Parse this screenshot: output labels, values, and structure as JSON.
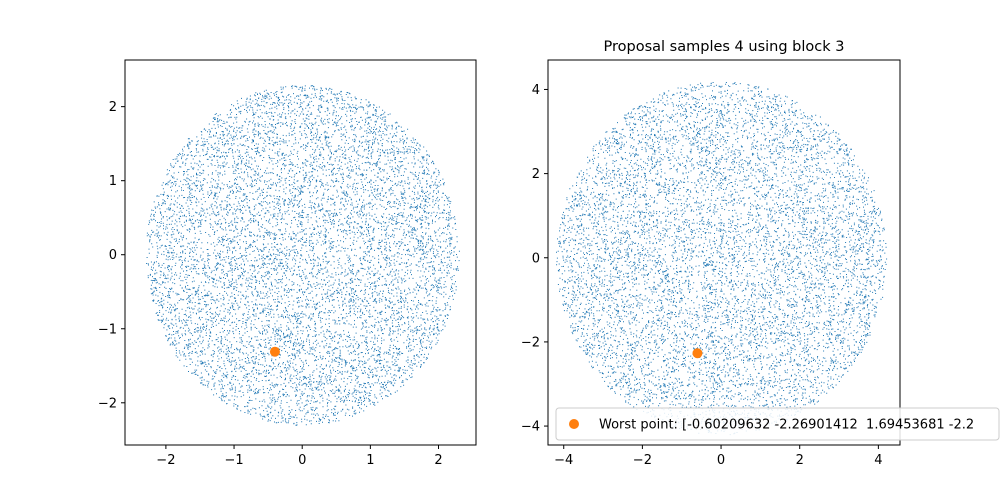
{
  "chart_data": [
    {
      "type": "scatter",
      "title": "",
      "xlabel": "",
      "ylabel": "",
      "xlim": [
        -2.6,
        2.55
      ],
      "ylim": [
        -2.57,
        2.63
      ],
      "xticks": [
        -2,
        -1,
        0,
        1,
        2
      ],
      "yticks": [
        -2,
        -1,
        0,
        1,
        2
      ],
      "grid": false,
      "sample_cloud": {
        "distribution": "approximately uniform within a disk",
        "center": [
          0,
          0
        ],
        "radius": 2.3,
        "marker": "pixel",
        "color": "#1f77b4"
      },
      "series": [
        {
          "x": [
            -0.4
          ],
          "y": [
            -1.31
          ],
          "color": "#ff7f0e",
          "marker": "o"
        }
      ]
    },
    {
      "type": "scatter",
      "title": "Proposal samples 4 using block 3",
      "xlabel": "",
      "ylabel": "",
      "xlim": [
        -4.4,
        4.55
      ],
      "ylim": [
        -4.45,
        4.7
      ],
      "xticks": [
        -4,
        -2,
        0,
        2,
        4
      ],
      "yticks": [
        -4,
        -2,
        0,
        2,
        4
      ],
      "grid": false,
      "legend_position": "lower-left",
      "sample_cloud": {
        "distribution": "approximately uniform within a disk",
        "center": [
          0,
          0
        ],
        "radius": 4.2,
        "marker": "pixel",
        "color": "#1f77b4"
      },
      "series": [
        {
          "name": "Worst point: [-0.60209632 -2.26901412  1.69453681 -2.2",
          "x": [
            -0.6
          ],
          "y": [
            -2.27
          ],
          "color": "#ff7f0e",
          "marker": "o"
        }
      ]
    }
  ]
}
